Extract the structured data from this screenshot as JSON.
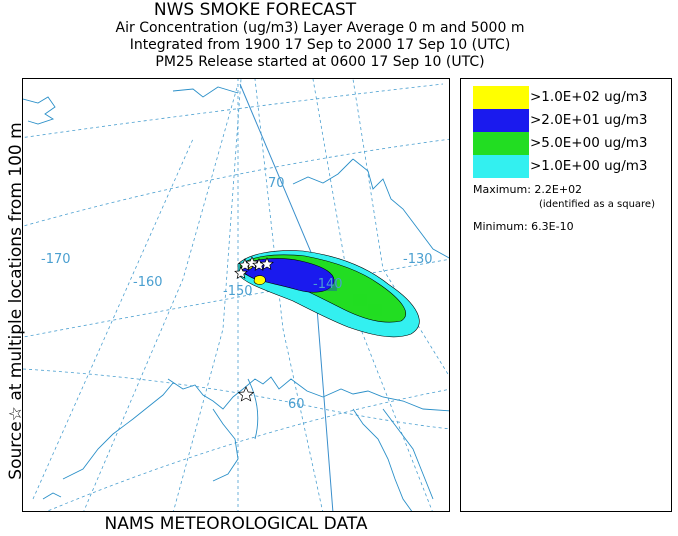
{
  "header": {
    "title": "NWS SMOKE FORECAST",
    "line2": "Air Concentration (ug/m3) Layer Average    0 m and  5000 m",
    "line3": "Integrated from 1900 17 Sep to 2000 17 Sep 10 (UTC)",
    "line4": "PM25 Release started at 0600 17 Sep 10 (UTC)"
  },
  "side_label": "Source☆ at multiple locations  from  100 m",
  "bottom_label": "NAMS METEOROLOGICAL DATA",
  "map": {
    "graticule_labels": [
      {
        "id": "lon-170",
        "text": "-170"
      },
      {
        "id": "lon-160",
        "text": "-160"
      },
      {
        "id": "lon-150",
        "text": "-150"
      },
      {
        "id": "lon-140",
        "text": "-140"
      },
      {
        "id": "lon-130",
        "text": "-130"
      },
      {
        "id": "lat-70",
        "text": "70"
      },
      {
        "id": "lat-60",
        "text": "60"
      }
    ],
    "source_marker": "☆",
    "line_color": "#4a9fd0",
    "coast_color": "#2a8fc8"
  },
  "legend": {
    "items": [
      {
        "label": ">1.0E+02 ug/m3",
        "color": "#ffff00"
      },
      {
        "label": ">2.0E+01 ug/m3",
        "color": "#1a1aee"
      },
      {
        "label": ">5.0E+00 ug/m3",
        "color": "#22dd22"
      },
      {
        "label": ">1.0E+00 ug/m3",
        "color": "#33f0f0"
      }
    ],
    "maximum_label": "Maximum: 2.2E+02",
    "maximum_note": "(identified as a square)",
    "minimum_label": "Minimum: 6.3E-10"
  }
}
